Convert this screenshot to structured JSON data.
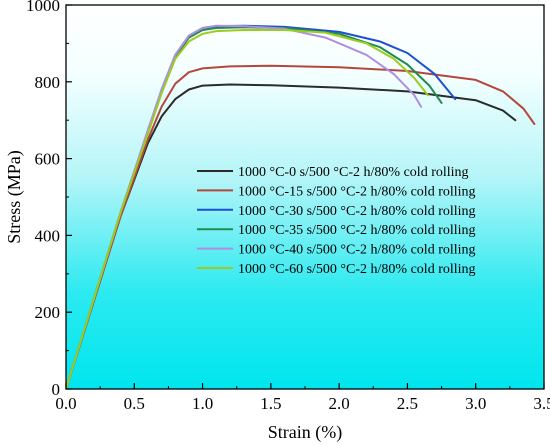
{
  "chart_data": {
    "type": "line",
    "xlabel": "Strain (%)",
    "ylabel": "Stress (MPa)",
    "xlim": [
      0,
      3.5
    ],
    "ylim": [
      0,
      1000
    ],
    "xticks": [
      "0.0",
      "0.5",
      "1.0",
      "1.5",
      "2.0",
      "2.5",
      "3.0",
      "3.5"
    ],
    "xtick_values": [
      0,
      0.5,
      1.0,
      1.5,
      2.0,
      2.5,
      3.0,
      3.5
    ],
    "yticks": [
      "0",
      "200",
      "400",
      "600",
      "800",
      "1000"
    ],
    "ytick_values": [
      0,
      200,
      400,
      600,
      800,
      1000
    ],
    "grid": false,
    "legend_position": "center-right",
    "background": "gradient from white (top) to cyan #00e5ee (bottom)",
    "series": [
      {
        "name": "1000 °C-0 s/500 °C-2 h/80% cold rolling",
        "color": "#2b2b2b",
        "x": [
          0,
          0.2,
          0.4,
          0.6,
          0.7,
          0.8,
          0.9,
          1.0,
          1.2,
          1.5,
          2.0,
          2.5,
          3.0,
          3.2,
          3.29
        ],
        "y": [
          0,
          225,
          450,
          640,
          710,
          755,
          780,
          790,
          793,
          791,
          785,
          775,
          752,
          725,
          700
        ]
      },
      {
        "name": "1000 °C-15 s/500 °C-2 h/80% cold rolling",
        "color": "#b5473a",
        "x": [
          0,
          0.2,
          0.4,
          0.6,
          0.7,
          0.8,
          0.9,
          1.0,
          1.2,
          1.5,
          2.0,
          2.5,
          3.0,
          3.2,
          3.35,
          3.43
        ],
        "y": [
          0,
          225,
          450,
          650,
          735,
          795,
          825,
          835,
          840,
          842,
          838,
          828,
          805,
          775,
          730,
          690
        ]
      },
      {
        "name": "1000 °C-30 s/500 °C-2 h/80% cold rolling",
        "color": "#1f4fd1",
        "x": [
          0,
          0.2,
          0.4,
          0.6,
          0.7,
          0.8,
          0.9,
          1.0,
          1.1,
          1.3,
          1.6,
          2.0,
          2.3,
          2.5,
          2.7,
          2.85
        ],
        "y": [
          0,
          230,
          460,
          670,
          780,
          870,
          920,
          940,
          945,
          946,
          943,
          930,
          905,
          875,
          820,
          755
        ]
      },
      {
        "name": "1000 °C-35 s/500 °C-2 h/80% cold rolling",
        "color": "#1d8c4e",
        "x": [
          0,
          0.2,
          0.4,
          0.6,
          0.7,
          0.8,
          0.9,
          1.0,
          1.1,
          1.3,
          1.6,
          2.0,
          2.3,
          2.5,
          2.66,
          2.75
        ],
        "y": [
          0,
          230,
          460,
          670,
          775,
          865,
          915,
          935,
          940,
          942,
          940,
          925,
          890,
          845,
          790,
          745
        ]
      },
      {
        "name": "1000 °C-40 s/500 °C-2 h/80% cold rolling",
        "color": "#b08fe0",
        "x": [
          0,
          0.2,
          0.4,
          0.6,
          0.7,
          0.8,
          0.9,
          1.0,
          1.1,
          1.3,
          1.6,
          1.9,
          2.2,
          2.4,
          2.55,
          2.6
        ],
        "y": [
          0,
          230,
          460,
          675,
          780,
          870,
          920,
          940,
          946,
          945,
          938,
          915,
          870,
          820,
          765,
          735
        ]
      },
      {
        "name": "1000 °C-60 s/500 °C-2 h/80% cold rolling",
        "color": "#9ccc1f",
        "x": [
          0,
          0.2,
          0.4,
          0.6,
          0.7,
          0.8,
          0.9,
          1.0,
          1.1,
          1.3,
          1.6,
          1.9,
          2.2,
          2.4,
          2.55,
          2.65
        ],
        "y": [
          0,
          230,
          460,
          665,
          770,
          860,
          905,
          925,
          932,
          935,
          935,
          928,
          900,
          860,
          810,
          765
        ]
      }
    ]
  }
}
